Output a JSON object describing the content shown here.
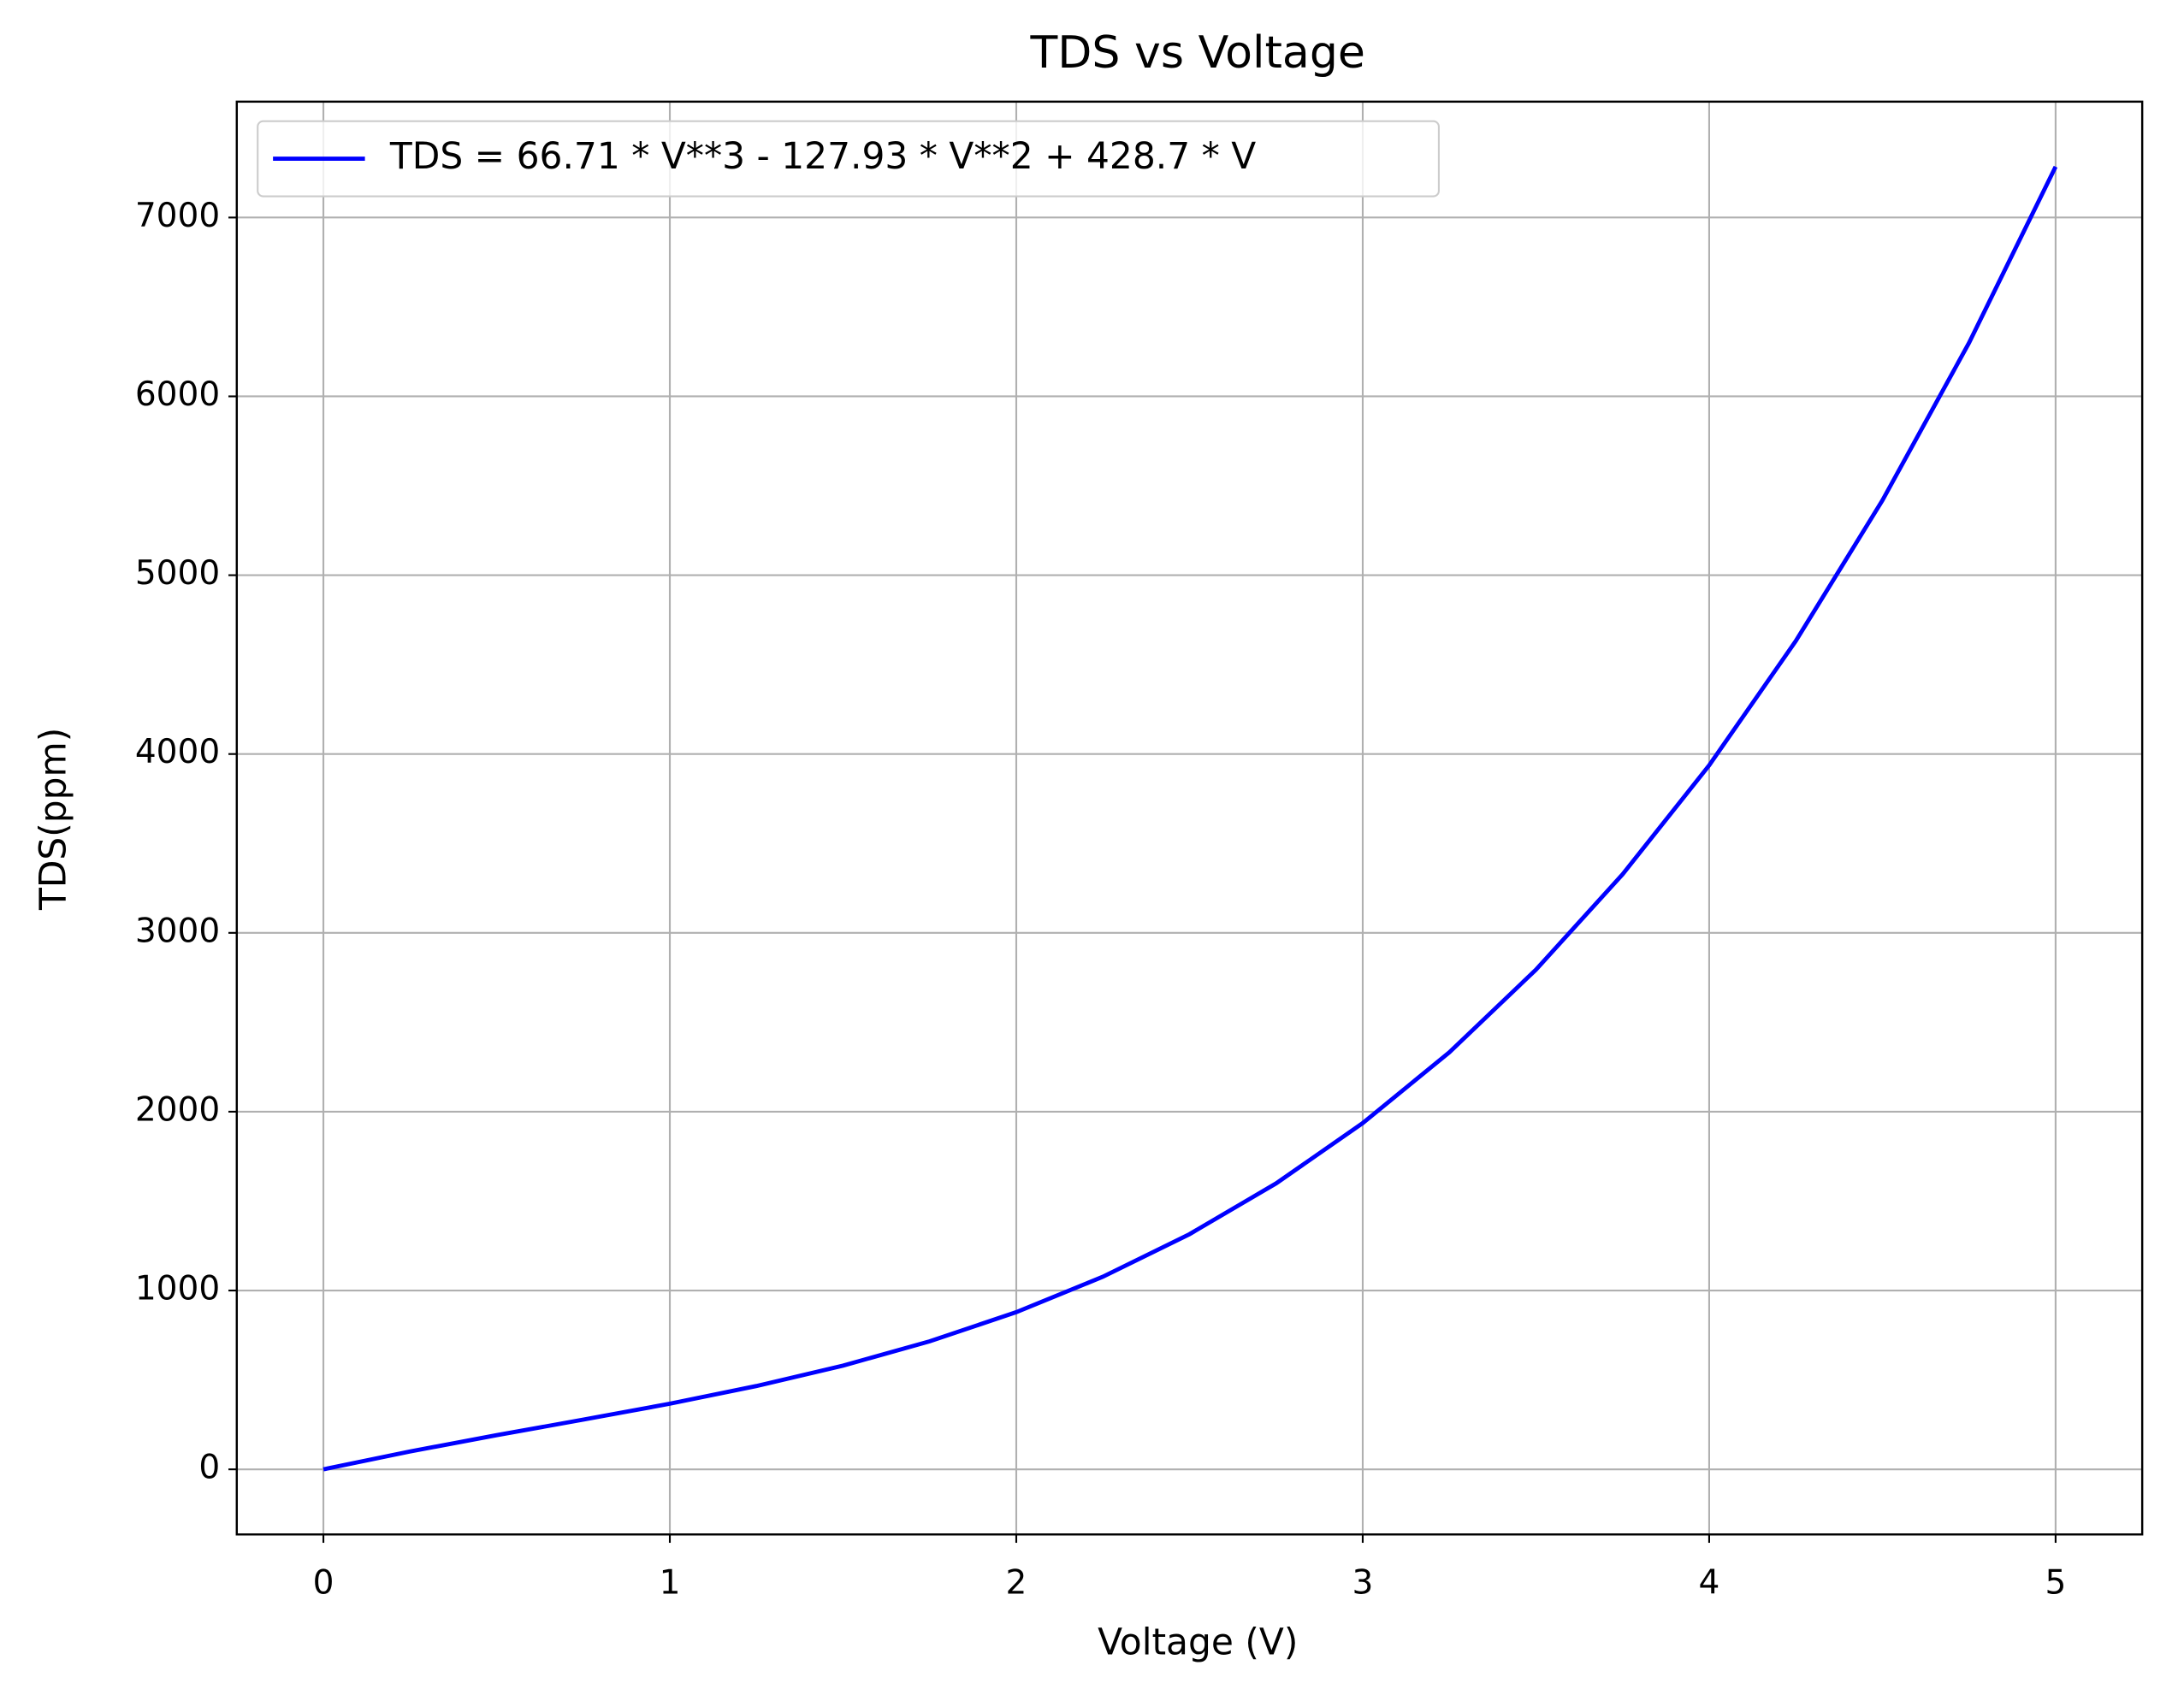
{
  "chart_data": {
    "type": "line",
    "title": "TDS vs Voltage",
    "x_label": "Voltage (V)",
    "y_label": "TDS(ppm)",
    "x": [
      0,
      0.25,
      0.5,
      0.75,
      1,
      1.25,
      1.5,
      1.75,
      2,
      2.25,
      2.5,
      2.75,
      3,
      3.25,
      3.5,
      3.75,
      4,
      4.25,
      4.5,
      4.75,
      5
    ],
    "series": [
      {
        "name": "TDS = 66.71 * V**3 - 127.93 * V**2 + 428.7 * V",
        "color": "#0000ff",
        "values": [
          0,
          100,
          191,
          278,
          367,
          466,
          580,
          716,
          879,
          1077,
          1315,
          1599,
          1936,
          2332,
          2794,
          3327,
          3937,
          4632,
          5418,
          6299,
          7284
        ]
      }
    ],
    "xlim": [
      -0.25,
      5.25
    ],
    "xticks": [
      0,
      1,
      2,
      3,
      4,
      5
    ],
    "ylim": [
      -364,
      7648
    ],
    "yticks": [
      0,
      1000,
      2000,
      3000,
      4000,
      5000,
      6000,
      7000
    ],
    "grid": true,
    "legend": "upper left"
  }
}
